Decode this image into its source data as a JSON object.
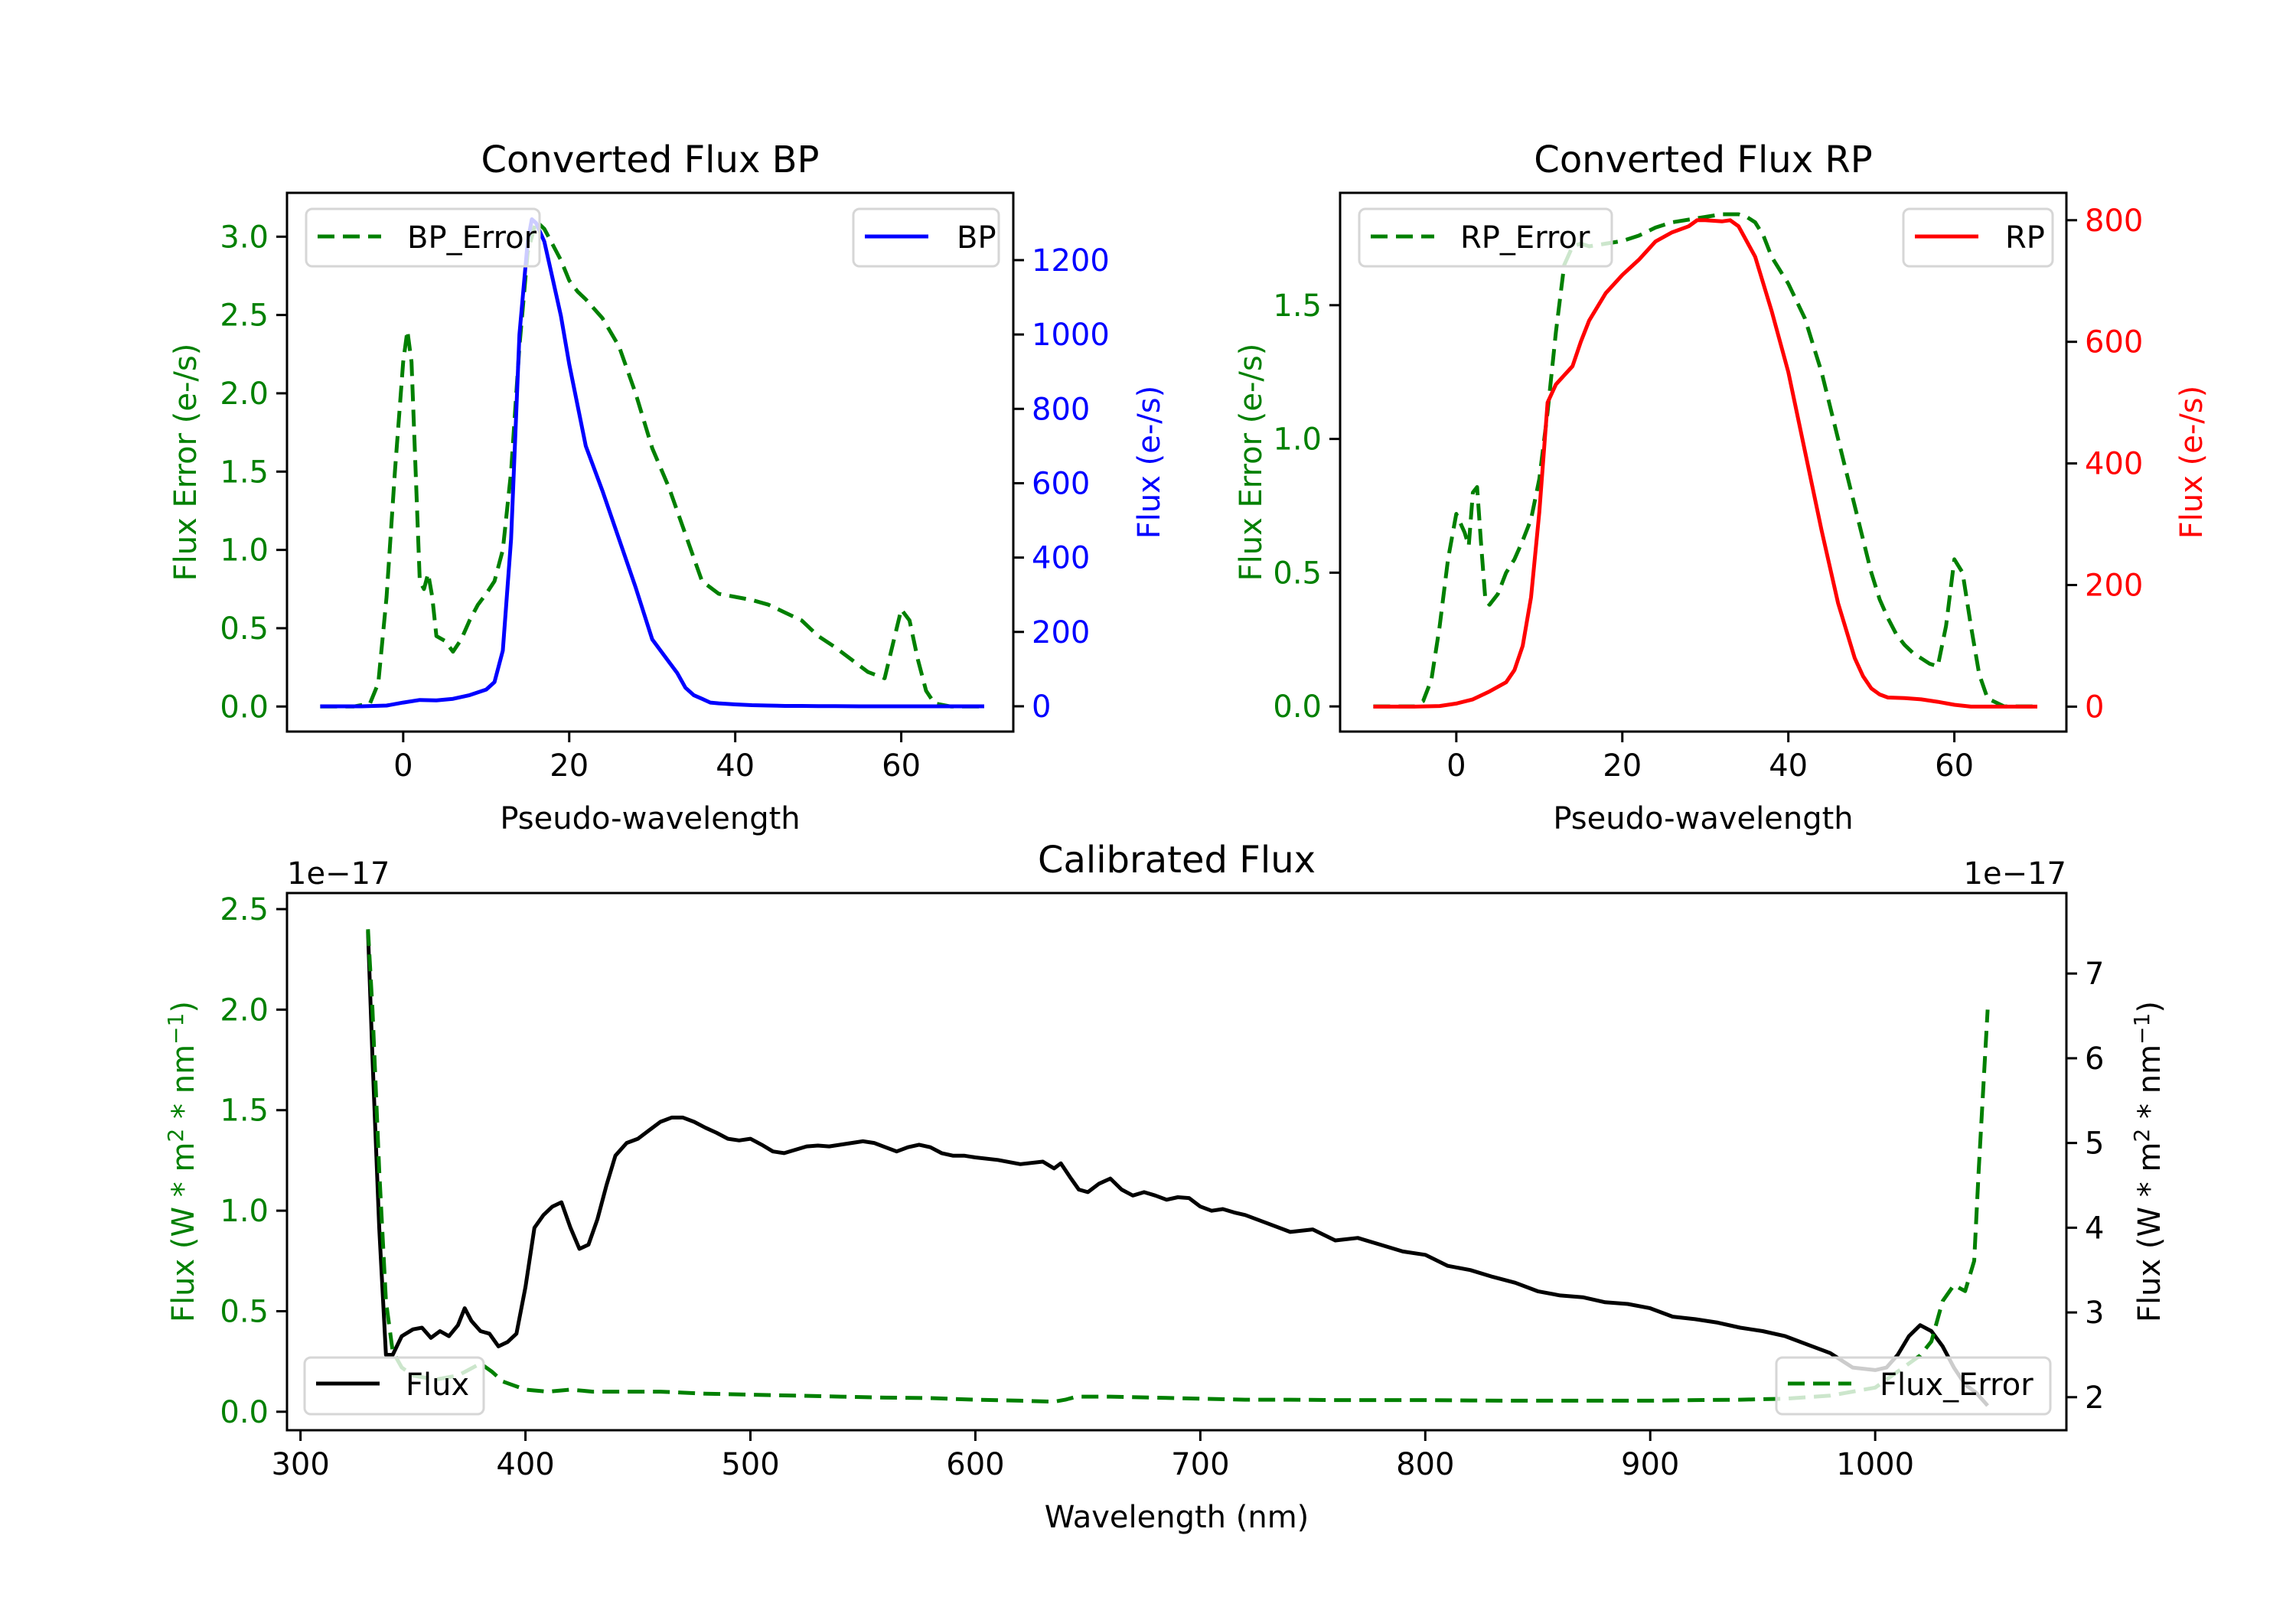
{
  "chart_data": [
    {
      "id": "bp",
      "type": "line",
      "title": "Converted Flux BP",
      "xlabel": "Pseudo-wavelength",
      "xlim": [
        -14,
        73.5
      ],
      "xticks": [
        0,
        20,
        40,
        60
      ],
      "left_axis": {
        "label": "Flux Error (e-/s)",
        "color": "#008000",
        "ylim": [
          -0.16,
          3.28
        ],
        "ticks": [
          0.0,
          0.5,
          1.0,
          1.5,
          2.0,
          2.5,
          3.0
        ],
        "tick_format": 1
      },
      "right_axis": {
        "label": "Flux (e-/s)",
        "color": "#0000ff",
        "ylim": [
          -68,
          1381
        ],
        "ticks": [
          0,
          200,
          400,
          600,
          800,
          1000,
          1200
        ],
        "tick_format": 0
      },
      "series": [
        {
          "name": "BP_Error",
          "axis": "left",
          "color": "#008000",
          "style": "dashed",
          "legend": "upper-left",
          "x": [
            -10,
            -6,
            -4,
            -3,
            -2,
            -1,
            0,
            0.5,
            1,
            2,
            2.5,
            3,
            3.5,
            4,
            5,
            6,
            7,
            8,
            9,
            10,
            11,
            12,
            13,
            14,
            15,
            16,
            17,
            18,
            19,
            20,
            21,
            22,
            24,
            26,
            28,
            30,
            32,
            34,
            36,
            38,
            40,
            42,
            44,
            46,
            48,
            50,
            52,
            54,
            56,
            57,
            58,
            59,
            60,
            61,
            62,
            63,
            64,
            66,
            70
          ],
          "y": [
            0,
            0,
            0.02,
            0.15,
            0.7,
            1.5,
            2.2,
            2.4,
            2.2,
            0.8,
            0.75,
            0.85,
            0.7,
            0.45,
            0.42,
            0.35,
            0.43,
            0.55,
            0.65,
            0.72,
            0.8,
            1.0,
            1.5,
            2.3,
            2.9,
            3.1,
            3.05,
            2.95,
            2.85,
            2.72,
            2.65,
            2.6,
            2.48,
            2.3,
            2.0,
            1.65,
            1.4,
            1.1,
            0.8,
            0.72,
            0.7,
            0.68,
            0.65,
            0.6,
            0.55,
            0.45,
            0.38,
            0.3,
            0.22,
            0.2,
            0.18,
            0.4,
            0.62,
            0.55,
            0.3,
            0.1,
            0.02,
            0,
            0
          ]
        },
        {
          "name": "BP",
          "axis": "right",
          "color": "#0000ff",
          "style": "solid",
          "legend": "upper-right",
          "x": [
            -10,
            -5,
            -2,
            0,
            2,
            4,
            6,
            8,
            10,
            11,
            12,
            13,
            14,
            15,
            15.5,
            16,
            17,
            18,
            19,
            20,
            22,
            24,
            26,
            28,
            30,
            32,
            33,
            34,
            35,
            36,
            37,
            38,
            40,
            42,
            44,
            46,
            48,
            50,
            52,
            55,
            58,
            60,
            65,
            70
          ],
          "y": [
            0,
            0,
            2,
            10,
            17,
            16,
            20,
            30,
            45,
            65,
            150,
            450,
            1000,
            1250,
            1310,
            1300,
            1250,
            1150,
            1050,
            920,
            700,
            580,
            450,
            320,
            180,
            120,
            90,
            50,
            30,
            20,
            10,
            8,
            5,
            3,
            2,
            1,
            1,
            0.5,
            0.5,
            0,
            0,
            0,
            0,
            0
          ]
        }
      ]
    },
    {
      "id": "rp",
      "type": "line",
      "title": "Converted Flux RP",
      "xlabel": "Pseudo-wavelength",
      "xlim": [
        -14,
        73.5
      ],
      "xticks": [
        0,
        20,
        40,
        60
      ],
      "left_axis": {
        "label": "Flux Error (e-/s)",
        "color": "#008000",
        "ylim": [
          -0.094,
          1.92
        ],
        "ticks": [
          0.0,
          0.5,
          1.0,
          1.5
        ],
        "tick_format": 1
      },
      "right_axis": {
        "label": "Flux (e-/s)",
        "color": "#ff0000",
        "ylim": [
          -41,
          845
        ],
        "ticks": [
          0,
          200,
          400,
          600,
          800
        ],
        "tick_format": 0
      },
      "series": [
        {
          "name": "RP_Error",
          "axis": "left",
          "color": "#008000",
          "style": "dashed",
          "legend": "upper-left",
          "x": [
            -10,
            -5,
            -4,
            -3,
            -2,
            -1,
            0,
            1,
            1.5,
            2,
            2.5,
            3,
            3.5,
            4,
            5,
            6,
            7,
            8,
            9,
            10,
            11,
            12,
            13,
            14,
            15,
            16,
            18,
            20,
            22,
            24,
            26,
            28,
            30,
            32,
            34,
            35,
            36,
            37,
            38,
            40,
            42,
            43,
            44,
            46,
            48,
            50,
            51,
            52,
            53,
            54,
            55,
            56,
            57,
            58,
            59,
            60,
            61,
            62,
            63,
            64,
            66,
            70
          ],
          "y": [
            0,
            0,
            0.02,
            0.1,
            0.3,
            0.55,
            0.72,
            0.65,
            0.6,
            0.8,
            0.82,
            0.6,
            0.4,
            0.38,
            0.42,
            0.5,
            0.55,
            0.62,
            0.7,
            0.85,
            1.1,
            1.4,
            1.65,
            1.72,
            1.73,
            1.72,
            1.73,
            1.74,
            1.76,
            1.79,
            1.81,
            1.82,
            1.83,
            1.84,
            1.84,
            1.83,
            1.81,
            1.76,
            1.68,
            1.58,
            1.45,
            1.35,
            1.25,
            1.0,
            0.75,
            0.5,
            0.4,
            0.33,
            0.27,
            0.23,
            0.2,
            0.18,
            0.16,
            0.15,
            0.3,
            0.55,
            0.5,
            0.3,
            0.12,
            0.03,
            0,
            0
          ]
        },
        {
          "name": "RP",
          "axis": "right",
          "color": "#ff0000",
          "style": "solid",
          "legend": "upper-right",
          "x": [
            -10,
            -5,
            -2,
            0,
            2,
            4,
            6,
            7,
            8,
            9,
            10,
            11,
            12,
            13,
            14,
            15,
            16,
            18,
            20,
            22,
            24,
            26,
            28,
            29,
            30,
            32,
            33,
            34,
            36,
            38,
            40,
            42,
            44,
            46,
            48,
            49,
            50,
            51,
            52,
            54,
            56,
            58,
            60,
            62,
            66,
            70
          ],
          "y": [
            0,
            0,
            1,
            5,
            12,
            25,
            40,
            60,
            100,
            180,
            320,
            500,
            530,
            545,
            560,
            600,
            635,
            680,
            710,
            735,
            765,
            780,
            790,
            800,
            800,
            798,
            800,
            790,
            740,
            650,
            550,
            420,
            290,
            170,
            80,
            50,
            30,
            20,
            15,
            14,
            12,
            8,
            3,
            0,
            0,
            0
          ]
        }
      ]
    },
    {
      "id": "calibrated",
      "type": "line",
      "title": "Calibrated Flux",
      "xlabel": "Wavelength (nm)",
      "xlim": [
        294,
        1085
      ],
      "xticks": [
        300,
        400,
        500,
        600,
        700,
        800,
        900,
        1000
      ],
      "left_axis": {
        "label_parts": [
          "Flux (W * m",
          "2",
          " * nm",
          "−1",
          ")"
        ],
        "color": "#008000",
        "multiplier": "1e−17",
        "ylim": [
          -0.092,
          2.58
        ],
        "ticks": [
          0.0,
          0.5,
          1.0,
          1.5,
          2.0,
          2.5
        ],
        "tick_format": 1
      },
      "right_axis": {
        "label_parts": [
          "Flux (W * m",
          "2",
          " * nm",
          "−1",
          ")"
        ],
        "color": "#000000",
        "multiplier": "1e−17",
        "ylim": [
          1.61,
          7.95
        ],
        "ticks": [
          2,
          3,
          4,
          5,
          6,
          7
        ],
        "tick_format": 0
      },
      "series": [
        {
          "name": "Flux",
          "axis": "right",
          "color": "#000000",
          "style": "solid",
          "legend": "lower-left",
          "x": [
            330,
            332,
            335,
            338,
            341,
            345,
            350,
            354,
            358,
            362,
            366,
            370,
            373,
            376,
            380,
            384,
            388,
            392,
            396,
            400,
            404,
            408,
            412,
            416,
            420,
            424,
            428,
            432,
            436,
            440,
            445,
            450,
            455,
            460,
            465,
            470,
            475,
            480,
            485,
            490,
            495,
            500,
            505,
            510,
            515,
            520,
            525,
            530,
            535,
            540,
            545,
            550,
            555,
            560,
            565,
            570,
            575,
            580,
            585,
            590,
            595,
            600,
            610,
            620,
            630,
            635,
            638,
            642,
            646,
            650,
            655,
            660,
            665,
            670,
            675,
            680,
            685,
            690,
            695,
            700,
            705,
            710,
            715,
            720,
            725,
            730,
            740,
            750,
            760,
            770,
            780,
            790,
            800,
            810,
            820,
            830,
            840,
            850,
            860,
            870,
            880,
            890,
            900,
            910,
            920,
            930,
            940,
            950,
            960,
            970,
            980,
            990,
            1000,
            1005,
            1010,
            1015,
            1020,
            1025,
            1030,
            1035,
            1040,
            1045,
            1050
          ],
          "y": [
            7.5,
            6.0,
            4.0,
            2.5,
            2.5,
            2.72,
            2.8,
            2.82,
            2.7,
            2.78,
            2.72,
            2.85,
            3.05,
            2.9,
            2.78,
            2.75,
            2.6,
            2.65,
            2.75,
            3.3,
            4.0,
            4.15,
            4.25,
            4.3,
            4.0,
            3.75,
            3.8,
            4.1,
            4.5,
            4.85,
            5.0,
            5.05,
            5.15,
            5.25,
            5.3,
            5.3,
            5.25,
            5.18,
            5.12,
            5.05,
            5.03,
            5.05,
            4.98,
            4.9,
            4.88,
            4.92,
            4.96,
            4.97,
            4.96,
            4.98,
            5.0,
            5.02,
            5.0,
            4.95,
            4.9,
            4.95,
            4.98,
            4.95,
            4.88,
            4.85,
            4.85,
            4.83,
            4.8,
            4.75,
            4.78,
            4.7,
            4.76,
            4.6,
            4.45,
            4.42,
            4.52,
            4.58,
            4.45,
            4.38,
            4.42,
            4.38,
            4.33,
            4.36,
            4.35,
            4.25,
            4.2,
            4.22,
            4.18,
            4.15,
            4.1,
            4.05,
            3.95,
            3.98,
            3.85,
            3.88,
            3.8,
            3.72,
            3.68,
            3.55,
            3.5,
            3.42,
            3.35,
            3.25,
            3.2,
            3.18,
            3.12,
            3.1,
            3.05,
            2.95,
            2.92,
            2.88,
            2.82,
            2.78,
            2.72,
            2.62,
            2.52,
            2.35,
            2.32,
            2.35,
            2.5,
            2.72,
            2.85,
            2.78,
            2.6,
            2.35,
            2.15,
            2.05,
            1.9
          ]
        },
        {
          "name": "Flux_Error",
          "axis": "left",
          "color": "#008000",
          "style": "dashed",
          "legend": "lower-right",
          "x": [
            330,
            332,
            335,
            338,
            341,
            345,
            350,
            360,
            370,
            380,
            385,
            390,
            395,
            400,
            410,
            420,
            430,
            440,
            460,
            480,
            500,
            520,
            540,
            560,
            580,
            600,
            620,
            635,
            640,
            645,
            660,
            680,
            700,
            720,
            740,
            760,
            780,
            800,
            820,
            840,
            860,
            880,
            900,
            920,
            940,
            960,
            980,
            1000,
            1010,
            1020,
            1025,
            1030,
            1035,
            1040,
            1044,
            1046,
            1050
          ],
          "y": [
            2.4,
            2.0,
            1.2,
            0.55,
            0.3,
            0.22,
            0.18,
            0.16,
            0.18,
            0.24,
            0.2,
            0.15,
            0.13,
            0.11,
            0.1,
            0.11,
            0.1,
            0.1,
            0.1,
            0.09,
            0.085,
            0.08,
            0.075,
            0.07,
            0.068,
            0.06,
            0.055,
            0.05,
            0.06,
            0.075,
            0.075,
            0.07,
            0.065,
            0.06,
            0.06,
            0.058,
            0.058,
            0.058,
            0.056,
            0.055,
            0.055,
            0.055,
            0.055,
            0.058,
            0.06,
            0.065,
            0.08,
            0.12,
            0.2,
            0.28,
            0.35,
            0.55,
            0.63,
            0.6,
            0.75,
            1.2,
            2.0
          ]
        }
      ]
    }
  ]
}
